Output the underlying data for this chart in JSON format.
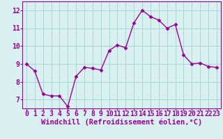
{
  "x": [
    0,
    1,
    2,
    3,
    4,
    5,
    6,
    7,
    8,
    9,
    10,
    11,
    12,
    13,
    14,
    15,
    16,
    17,
    18,
    19,
    20,
    21,
    22,
    23
  ],
  "y": [
    9.0,
    8.6,
    7.3,
    7.2,
    7.2,
    6.6,
    8.3,
    8.8,
    8.75,
    8.65,
    9.75,
    10.05,
    9.9,
    11.3,
    12.0,
    11.65,
    11.45,
    11.0,
    11.2,
    9.5,
    9.0,
    9.05,
    8.85,
    8.8
  ],
  "line_color": "#990099",
  "marker": "D",
  "marker_size": 2.5,
  "line_width": 1.0,
  "bg_color": "#d8f0f0",
  "grid_color": "#aad4d4",
  "xlabel": "Windchill (Refroidissement éolien,°C)",
  "xlabel_color": "#990099",
  "tick_color": "#990099",
  "ylim": [
    6.5,
    12.5
  ],
  "xlim": [
    -0.5,
    23.5
  ],
  "yticks": [
    7,
    8,
    9,
    10,
    11,
    12
  ],
  "xticks": [
    0,
    1,
    2,
    3,
    4,
    5,
    6,
    7,
    8,
    9,
    10,
    11,
    12,
    13,
    14,
    15,
    16,
    17,
    18,
    19,
    20,
    21,
    22,
    23
  ],
  "fontsize_xlabel": 7.5,
  "fontsize_ticks": 7
}
